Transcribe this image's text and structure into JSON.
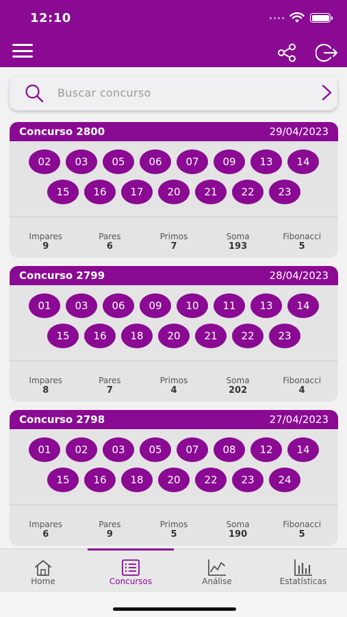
{
  "status_bar": {
    "time": "12:10"
  },
  "colors": {
    "primary": "#8a0a93",
    "card_bg": "#e4e4e4",
    "background": "#f2f2f2"
  },
  "header": {
    "icons": [
      "menu-icon",
      "share-icon",
      "logout-icon"
    ]
  },
  "search": {
    "placeholder": "Buscar concurso",
    "value": ""
  },
  "draws": [
    {
      "title": "Concurso 2800",
      "date": "29/04/2023",
      "numbers": [
        "02",
        "03",
        "05",
        "06",
        "07",
        "09",
        "13",
        "14",
        "15",
        "16",
        "17",
        "20",
        "21",
        "22",
        "23"
      ],
      "stats": [
        {
          "label": "Impares",
          "value": "9"
        },
        {
          "label": "Pares",
          "value": "6"
        },
        {
          "label": "Primos",
          "value": "7"
        },
        {
          "label": "Soma",
          "value": "193"
        },
        {
          "label": "Fibonacci",
          "value": "5"
        }
      ]
    },
    {
      "title": "Concurso 2799",
      "date": "28/04/2023",
      "numbers": [
        "01",
        "03",
        "06",
        "09",
        "10",
        "11",
        "13",
        "14",
        "15",
        "16",
        "18",
        "20",
        "21",
        "22",
        "23"
      ],
      "stats": [
        {
          "label": "Impares",
          "value": "8"
        },
        {
          "label": "Pares",
          "value": "7"
        },
        {
          "label": "Primos",
          "value": "4"
        },
        {
          "label": "Soma",
          "value": "202"
        },
        {
          "label": "Fibonacci",
          "value": "4"
        }
      ]
    },
    {
      "title": "Concurso 2798",
      "date": "27/04/2023",
      "numbers": [
        "01",
        "02",
        "03",
        "05",
        "07",
        "08",
        "12",
        "14",
        "15",
        "16",
        "18",
        "20",
        "22",
        "23",
        "24"
      ],
      "stats": [
        {
          "label": "Impares",
          "value": "6"
        },
        {
          "label": "Pares",
          "value": "9"
        },
        {
          "label": "Primos",
          "value": "5"
        },
        {
          "label": "Soma",
          "value": "190"
        },
        {
          "label": "Fibonacci",
          "value": "5"
        }
      ]
    }
  ],
  "tabs": [
    {
      "label": "Home",
      "icon": "home-icon",
      "active": false
    },
    {
      "label": "Concursos",
      "icon": "list-icon",
      "active": true
    },
    {
      "label": "Análise",
      "icon": "chart-line-icon",
      "active": false
    },
    {
      "label": "Estatísticas",
      "icon": "bar-chart-icon",
      "active": false
    }
  ]
}
